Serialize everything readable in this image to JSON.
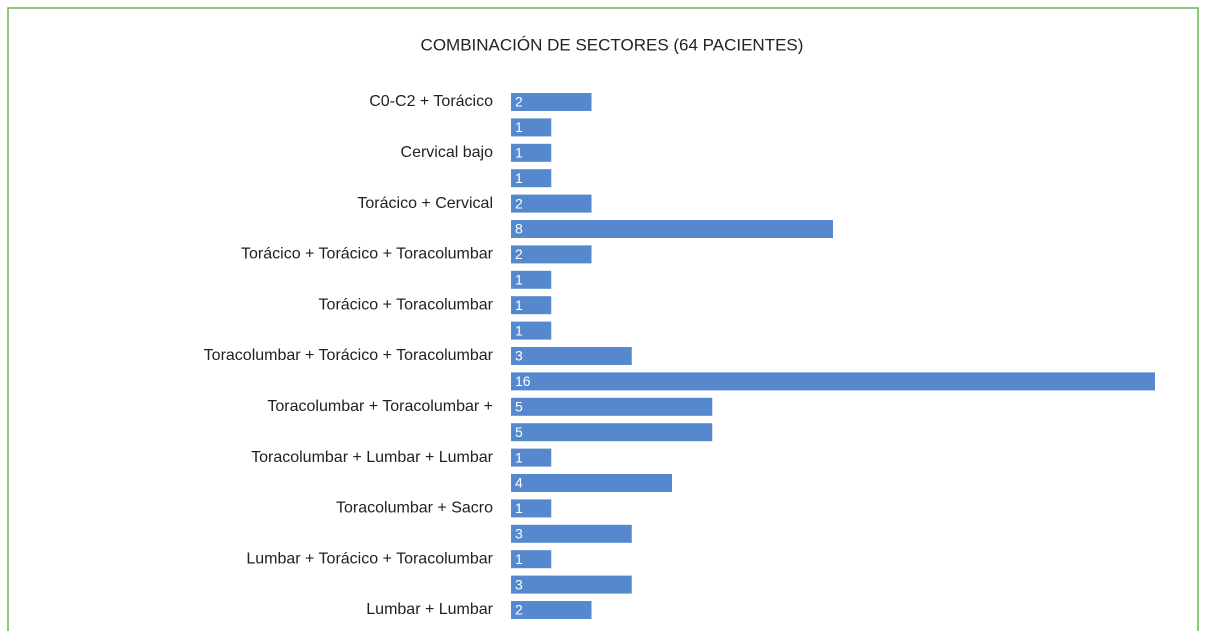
{
  "chart_data": {
    "type": "bar",
    "orientation": "horizontal",
    "title": "COMBINACIÓN DE SECTORES (64 PACIENTES)",
    "categories": [
      "C0-C2 + Torácico",
      null,
      "Cervical bajo",
      null,
      "Torácico + Cervical",
      null,
      "Torácico + Torácico + Toracolumbar",
      null,
      "Torácico + Toracolumbar",
      null,
      "Toracolumbar + Torácico + Toracolumbar",
      null,
      "Toracolumbar + Toracolumbar +",
      null,
      "Toracolumbar + Lumbar + Lumbar",
      null,
      "Toracolumbar + Sacro",
      null,
      "Lumbar + Torácico + Toracolumbar",
      null,
      "Lumbar + Lumbar"
    ],
    "values": [
      2,
      1,
      1,
      1,
      2,
      8,
      2,
      1,
      1,
      1,
      3,
      16,
      5,
      5,
      1,
      4,
      1,
      3,
      1,
      3,
      2
    ],
    "color": "#5588cc"
  }
}
